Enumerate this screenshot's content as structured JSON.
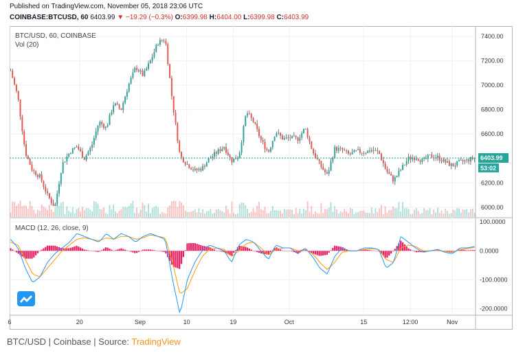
{
  "header": {
    "published": "Published on TradingView.com, November 05, 2018 23:06 UTC",
    "symbol": "COINBASE:BTCUSD, 60",
    "last": "6403.99",
    "change": "▼ −19.29 (−0.3%)",
    "o_label": "O:",
    "o_value": "6399.98",
    "h_label": "H:",
    "h_value": "6404.00",
    "l_label": "L:",
    "l_value": "6399.98",
    "c_label": "C:",
    "c_value": "6403.99"
  },
  "pane": {
    "symbol_label": "BTC/USD, 60, COINBASE",
    "volume_label": "Vol (20)",
    "macd_label": "MACD (12, 26, close, 9)"
  },
  "footer": {
    "prefix": "BTC/USD | Coinbase | Source: ",
    "source": "TradingView"
  },
  "colors": {
    "up": "#26a69a",
    "down": "#ef5350",
    "wick": "#555555",
    "macd_line": "#2196f3",
    "signal_line": "#ff9800",
    "histogram": "#e91e63",
    "price_tag": "#26a69a",
    "grid": "#eef0f3"
  },
  "chart_data": [
    {
      "type": "candlestick",
      "title": "BTC/USD, 60, COINBASE",
      "x_ticks": [
        "6",
        "20",
        "Sep",
        "10",
        "19",
        "Oct",
        "15",
        "12:00",
        "Nov"
      ],
      "y_ticks": [
        "7400.00",
        "7200.00",
        "7000.00",
        "6800.00",
        "6600.00",
        "6400.00",
        "6200.00",
        "6000.00"
      ],
      "ylim": [
        5920,
        7440
      ],
      "last_price": "6403.99",
      "countdown": "53:02",
      "series": [
        {
          "name": "close",
          "values": [
            7120,
            6900,
            6450,
            6300,
            6250,
            6100,
            6000,
            6350,
            6450,
            6500,
            6400,
            6500,
            6700,
            6650,
            6850,
            6800,
            7000,
            7150,
            7080,
            7200,
            7350,
            7380,
            6850,
            6420,
            6350,
            6300,
            6320,
            6400,
            6450,
            6500,
            6380,
            6420,
            6780,
            6700,
            6550,
            6450,
            6620,
            6560,
            6570,
            6560,
            6650,
            6460,
            6350,
            6260,
            6480,
            6470,
            6430,
            6460,
            6450,
            6470,
            6450,
            6300,
            6220,
            6310,
            6400,
            6410,
            6380,
            6420,
            6410,
            6370,
            6340,
            6370,
            6385,
            6404
          ]
        }
      ]
    },
    {
      "type": "line",
      "title": "MACD (12, 26, close, 9)",
      "y_ticks": [
        "100.0000",
        "0.0000",
        "-100.0000",
        "-200.0000"
      ],
      "ylim": [
        -220,
        105
      ],
      "series": [
        {
          "name": "MACD",
          "values": [
            40,
            10,
            -60,
            -110,
            -90,
            -40,
            -10,
            10,
            30,
            60,
            50,
            40,
            30,
            60,
            40,
            60,
            50,
            30,
            50,
            60,
            50,
            40,
            -100,
            -220,
            -100,
            -40,
            0,
            20,
            10,
            0,
            -40,
            20,
            40,
            30,
            0,
            -30,
            20,
            10,
            10,
            -10,
            10,
            -20,
            -60,
            -80,
            -20,
            10,
            0,
            0,
            10,
            10,
            5,
            -60,
            -40,
            50,
            30,
            10,
            -5,
            0,
            5,
            -5,
            -10,
            10,
            10,
            15
          ]
        },
        {
          "name": "Signal",
          "values": [
            30,
            20,
            -30,
            -80,
            -90,
            -60,
            -30,
            0,
            20,
            40,
            45,
            40,
            35,
            45,
            40,
            50,
            50,
            40,
            45,
            55,
            50,
            45,
            -40,
            -150,
            -130,
            -70,
            -20,
            5,
            10,
            5,
            -20,
            0,
            25,
            30,
            10,
            -15,
            5,
            10,
            10,
            0,
            5,
            -10,
            -40,
            -65,
            -40,
            -5,
            0,
            0,
            5,
            8,
            5,
            -30,
            -40,
            10,
            20,
            15,
            0,
            0,
            3,
            -2,
            -6,
            4,
            8,
            12
          ]
        }
      ]
    }
  ]
}
